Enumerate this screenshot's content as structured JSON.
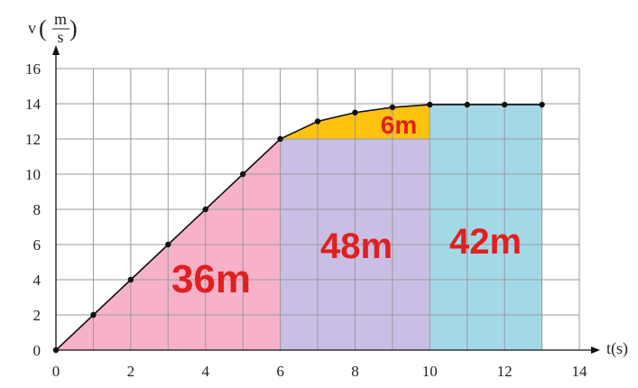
{
  "chart_data": {
    "type": "line",
    "x_label": "t(s)",
    "y_label": {
      "symbol": "v",
      "unit_numerator": "m",
      "unit_denominator": "s"
    },
    "x_range": [
      0,
      14
    ],
    "y_range": [
      0,
      16
    ],
    "x_ticks": [
      "0",
      "2",
      "4",
      "6",
      "8",
      "10",
      "12",
      "14"
    ],
    "y_ticks": [
      "0",
      "2",
      "4",
      "6",
      "8",
      "10",
      "12",
      "14",
      "16"
    ],
    "grid": true,
    "series": [
      {
        "points": [
          [
            0,
            0
          ],
          [
            1,
            2
          ],
          [
            2,
            4
          ],
          [
            3,
            6
          ],
          [
            4,
            8
          ],
          [
            5,
            10
          ],
          [
            6,
            12
          ],
          [
            7,
            13
          ],
          [
            8,
            13.5
          ],
          [
            9,
            13.8
          ],
          [
            10,
            13.95
          ],
          [
            11,
            13.95
          ],
          [
            12,
            13.95
          ],
          [
            13,
            13.95
          ]
        ]
      }
    ],
    "regions": [
      {
        "label": "36m",
        "color": "#f7b1c9",
        "kind": "triangle",
        "x0": 0,
        "x1": 6,
        "y_top": 12
      },
      {
        "label": "48m",
        "color": "#c9bfe4",
        "kind": "rect",
        "x0": 6,
        "x1": 10,
        "y0": 0,
        "y1": 12
      },
      {
        "label": "6m",
        "color": "#ffc20e",
        "kind": "curve",
        "x0": 6,
        "x1": 10,
        "y0": 12
      },
      {
        "label": "42m",
        "color": "#a3d9e7",
        "kind": "rect",
        "x0": 10,
        "x1": 13,
        "y0": 0,
        "y1": 13.95
      }
    ]
  }
}
